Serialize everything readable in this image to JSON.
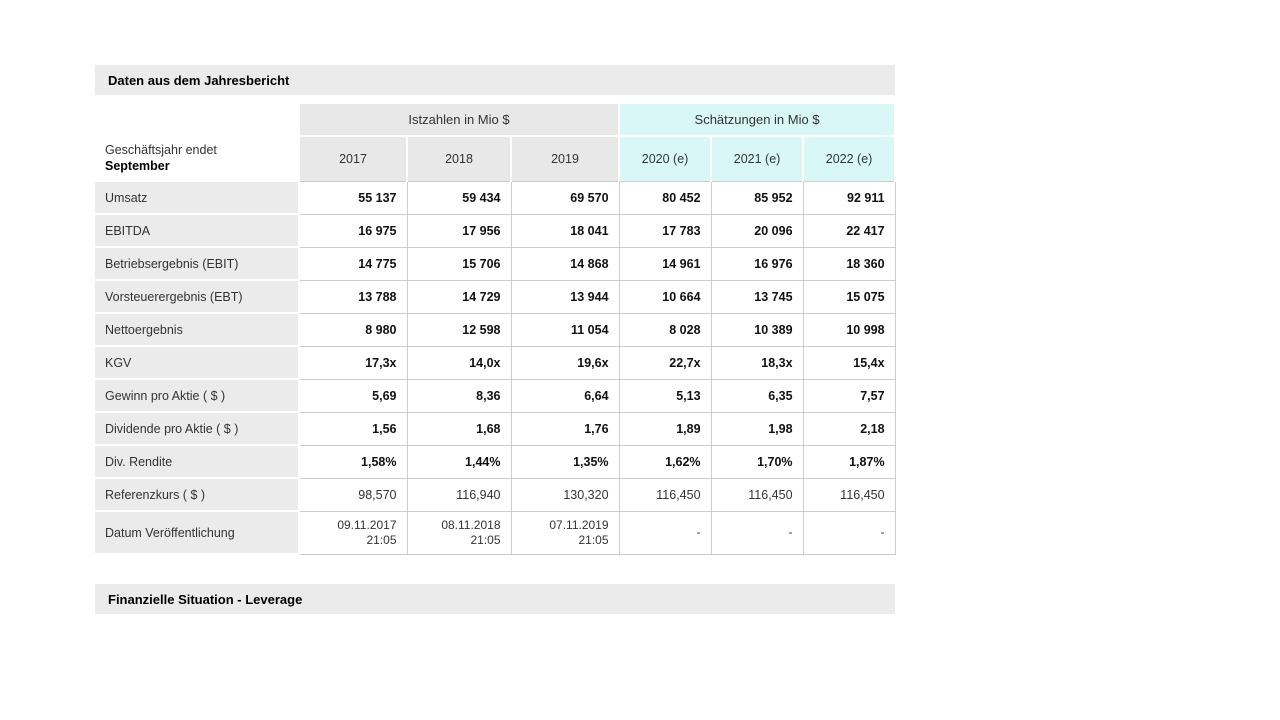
{
  "sections": [
    {
      "title": "Daten aus dem Jahresbericht"
    },
    {
      "title": "Finanzielle Situation - Leverage"
    }
  ],
  "table": {
    "group_headers": [
      "Istzahlen in Mio $",
      "Schätzungen in Mio $"
    ],
    "corner": {
      "line1": "Geschäftsjahr endet",
      "line2": "September"
    },
    "columns": [
      "2017",
      "2018",
      "2019",
      "2020 (e)",
      "2021 (e)",
      "2022 (e)"
    ],
    "estimate_start_index": 3,
    "rows": [
      {
        "label": "Umsatz",
        "bold": true,
        "values": [
          "55 137",
          "59 434",
          "69 570",
          "80 452",
          "85 952",
          "92 911"
        ]
      },
      {
        "label": "EBITDA",
        "bold": true,
        "values": [
          "16 975",
          "17 956",
          "18 041",
          "17 783",
          "20 096",
          "22 417"
        ]
      },
      {
        "label": "Betriebsergebnis (EBIT)",
        "bold": true,
        "values": [
          "14 775",
          "15 706",
          "14 868",
          "14 961",
          "16 976",
          "18 360"
        ]
      },
      {
        "label": "Vorsteuerergebnis (EBT)",
        "bold": true,
        "values": [
          "13 788",
          "14 729",
          "13 944",
          "10 664",
          "13 745",
          "15 075"
        ]
      },
      {
        "label": "Nettoergebnis",
        "bold": true,
        "values": [
          "8 980",
          "12 598",
          "11 054",
          "8 028",
          "10 389",
          "10 998"
        ]
      },
      {
        "label": "KGV",
        "bold": true,
        "values": [
          "17,3x",
          "14,0x",
          "19,6x",
          "22,7x",
          "18,3x",
          "15,4x"
        ]
      },
      {
        "label": "Gewinn pro Aktie ( $ )",
        "bold": true,
        "values": [
          "5,69",
          "8,36",
          "6,64",
          "5,13",
          "6,35",
          "7,57"
        ]
      },
      {
        "label": "Dividende pro Aktie ( $ )",
        "bold": true,
        "values": [
          "1,56",
          "1,68",
          "1,76",
          "1,89",
          "1,98",
          "2,18"
        ]
      },
      {
        "label": "Div. Rendite",
        "bold": true,
        "values": [
          "1,58%",
          "1,44%",
          "1,35%",
          "1,62%",
          "1,70%",
          "1,87%"
        ]
      },
      {
        "label": "Referenzkurs ( $ )",
        "bold": false,
        "values": [
          "98,570",
          "116,940",
          "130,320",
          "116,450",
          "116,450",
          "116,450"
        ]
      },
      {
        "label": "Datum Veröffentlichung",
        "bold": false,
        "multiline": true,
        "values": [
          "09.11.2017\n21:05",
          "08.11.2018\n21:05",
          "07.11.2019\n21:05",
          "-",
          "-",
          "-"
        ]
      }
    ]
  },
  "colors": {
    "section_bar_bg": "#ebebeb",
    "actual_header_bg": "#e8e8e8",
    "estimate_header_bg": "#d9f7f7",
    "row_label_bg": "#ebebeb",
    "border": "#cccccc"
  },
  "chart_data": {
    "type": "table",
    "title": "Daten aus dem Jahresbericht",
    "row_header": "Geschäftsjahr endet September",
    "column_groups": [
      {
        "label": "Istzahlen in Mio $",
        "columns": [
          "2017",
          "2018",
          "2019"
        ]
      },
      {
        "label": "Schätzungen in Mio $",
        "columns": [
          "2020 (e)",
          "2021 (e)",
          "2022 (e)"
        ]
      }
    ],
    "rows": [
      [
        "Umsatz",
        "55 137",
        "59 434",
        "69 570",
        "80 452",
        "85 952",
        "92 911"
      ],
      [
        "EBITDA",
        "16 975",
        "17 956",
        "18 041",
        "17 783",
        "20 096",
        "22 417"
      ],
      [
        "Betriebsergebnis (EBIT)",
        "14 775",
        "15 706",
        "14 868",
        "14 961",
        "16 976",
        "18 360"
      ],
      [
        "Vorsteuerergebnis (EBT)",
        "13 788",
        "14 729",
        "13 944",
        "10 664",
        "13 745",
        "15 075"
      ],
      [
        "Nettoergebnis",
        "8 980",
        "12 598",
        "11 054",
        "8 028",
        "10 389",
        "10 998"
      ],
      [
        "KGV",
        "17,3x",
        "14,0x",
        "19,6x",
        "22,7x",
        "18,3x",
        "15,4x"
      ],
      [
        "Gewinn pro Aktie ( $ )",
        "5,69",
        "8,36",
        "6,64",
        "5,13",
        "6,35",
        "7,57"
      ],
      [
        "Dividende pro Aktie ( $ )",
        "1,56",
        "1,68",
        "1,76",
        "1,89",
        "1,98",
        "2,18"
      ],
      [
        "Div. Rendite",
        "1,58%",
        "1,44%",
        "1,35%",
        "1,62%",
        "1,70%",
        "1,87%"
      ],
      [
        "Referenzkurs ( $ )",
        "98,570",
        "116,940",
        "130,320",
        "116,450",
        "116,450",
        "116,450"
      ],
      [
        "Datum Veröffentlichung",
        "09.11.2017 21:05",
        "08.11.2018 21:05",
        "07.11.2019 21:05",
        "-",
        "-",
        "-"
      ]
    ],
    "next_section_title": "Finanzielle Situation - Leverage"
  }
}
